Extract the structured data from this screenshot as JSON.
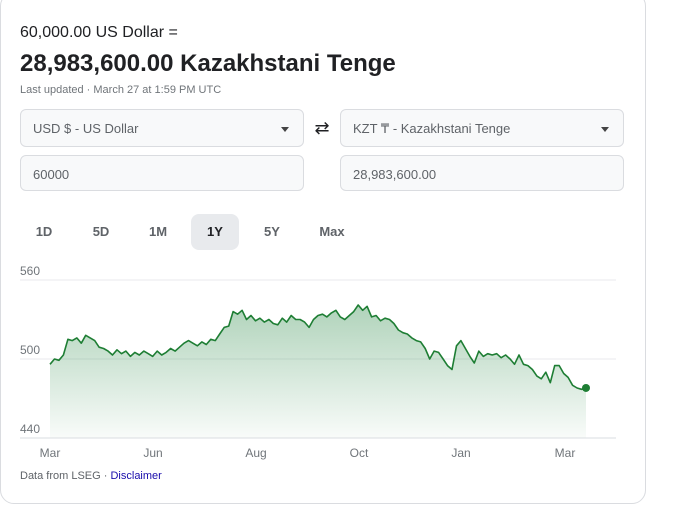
{
  "header": {
    "source_line": "60,000.00 US Dollar =",
    "result": "28,983,600.00 Kazakhstani Tenge",
    "updated": "Last updated · March 27 at 1:59 PM UTC"
  },
  "converter": {
    "from_currency": "USD $ - US Dollar",
    "to_currency": "KZT ₸ - Kazakhstani Tenge",
    "from_amount": "60000",
    "to_amount": "28,983,600.00",
    "swap_icon": "swap-arrows-icon"
  },
  "tabs": [
    {
      "label": "1D",
      "active": false
    },
    {
      "label": "5D",
      "active": false
    },
    {
      "label": "1M",
      "active": false
    },
    {
      "label": "1Y",
      "active": true
    },
    {
      "label": "5Y",
      "active": false
    },
    {
      "label": "Max",
      "active": false
    }
  ],
  "chart_data": {
    "type": "area",
    "title": "",
    "xlabel": "",
    "ylabel": "",
    "ylim": [
      440,
      560
    ],
    "yticks": [
      560,
      500,
      440
    ],
    "xticks": [
      "Mar",
      "Jun",
      "Aug",
      "Oct",
      "Jan",
      "Mar"
    ],
    "grid": true,
    "color": "#1e7e34",
    "fill_color": "#2e8b4a",
    "series": [
      {
        "values": [
          496,
          500,
          499,
          503,
          515,
          514,
          516,
          512,
          518,
          516,
          514,
          509,
          508,
          506,
          503,
          507,
          504,
          506,
          502,
          505,
          503,
          506,
          504,
          502,
          506,
          503,
          505,
          508,
          506,
          509,
          512,
          514,
          512,
          510,
          513,
          511,
          515,
          514,
          519,
          524,
          525,
          536,
          534,
          537,
          530,
          533,
          529,
          531,
          528,
          530,
          527,
          526,
          531,
          528,
          533,
          530,
          530,
          528,
          524,
          530,
          533,
          534,
          532,
          535,
          537,
          532,
          530,
          533,
          536,
          541,
          537,
          540,
          532,
          533,
          529,
          531,
          530,
          527,
          522,
          520,
          519,
          516,
          514,
          513,
          508,
          500,
          506,
          505,
          500,
          495,
          492,
          510,
          514,
          508,
          502,
          497,
          506,
          502,
          504,
          503,
          504,
          501,
          503,
          500,
          496,
          503,
          496,
          495,
          492,
          487,
          485,
          490,
          482,
          495,
          495,
          489,
          486,
          480,
          478,
          477,
          478
        ]
      }
    ],
    "endpoint_value": 478
  },
  "footer": {
    "source": "Data from LSEG · ",
    "disclaimer": "Disclaimer"
  }
}
